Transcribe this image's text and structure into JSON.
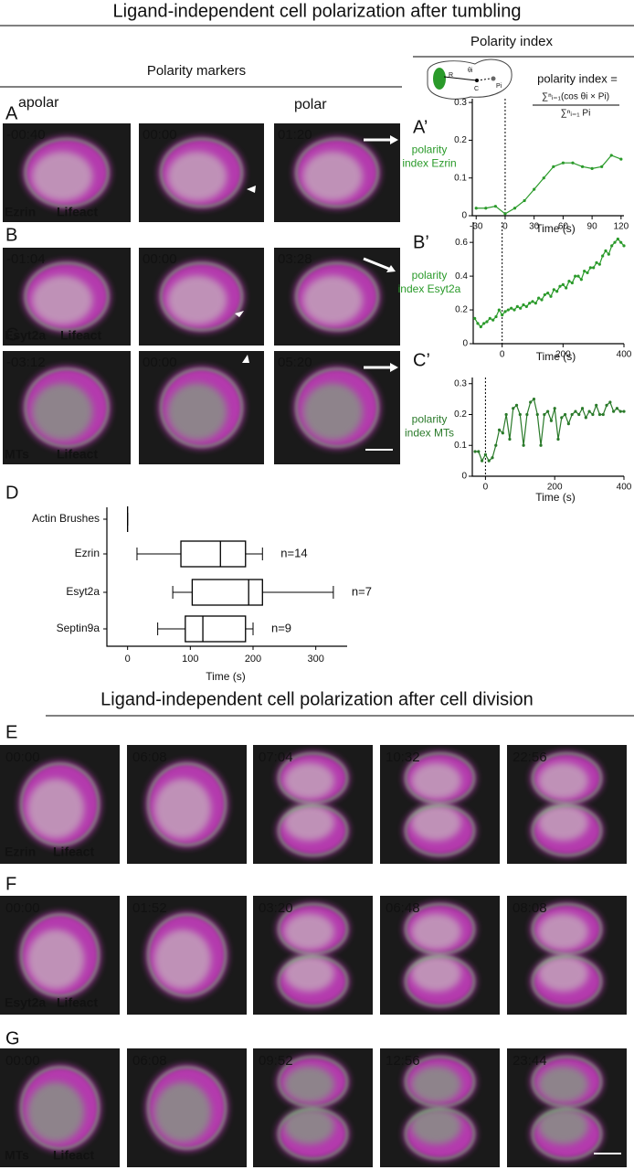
{
  "title": "Ligand-independent cell polarization after tumbling",
  "headers": {
    "polarity_index": "Polarity index",
    "polarity_markers": "Polarity markers",
    "apolar": "apolar",
    "polar": "polar"
  },
  "diagram_labels": [
    "R",
    "θi",
    "C",
    "Pi"
  ],
  "formula": {
    "lhs": "polarity index =",
    "numerator": "∑ⁿᵢ₌₁(cos θi × Pi)",
    "denominator": "∑ⁿᵢ₌₁ Pi"
  },
  "top_panels": [
    {
      "letter": "A",
      "channels": [
        "Ezrin",
        "Lifeact"
      ],
      "times": [
        "-00:40",
        "00:00",
        "01:20"
      ]
    },
    {
      "letter": "B",
      "channels": [
        "Esyt2a",
        "Lifeact"
      ],
      "times": [
        "-01:04",
        "00:00",
        "03:28"
      ]
    },
    {
      "letter": "C",
      "channels": [
        "MTs",
        "Lifeact"
      ],
      "times": [
        "-03:12",
        "00:00",
        "05:20"
      ]
    }
  ],
  "subtitle": "Ligand-independent cell polarization after cell division",
  "bottom_panels": [
    {
      "letter": "E",
      "channels": [
        "Ezrin",
        "Lifeact"
      ],
      "times": [
        "00:00",
        "06:08",
        "07:04",
        "10:32",
        "22:56"
      ]
    },
    {
      "letter": "F",
      "channels": [
        "Esyt2a",
        "Lifeact"
      ],
      "times": [
        "00:00",
        "01:52",
        "03:20",
        "06:48",
        "08:08"
      ]
    },
    {
      "letter": "G",
      "channels": [
        "MTs",
        "Lifeact"
      ],
      "times": [
        "00:00",
        "06:08",
        "09:52",
        "12:56",
        "23:44"
      ]
    }
  ],
  "chart_data": [
    {
      "type": "line",
      "panel": "A’",
      "ylabel": [
        "polarity",
        "index Ezrin"
      ],
      "xlabel": "Time (s)",
      "color": "#2a9a2a",
      "x": [
        -30,
        -20,
        -10,
        0,
        10,
        20,
        30,
        40,
        50,
        60,
        70,
        80,
        90,
        100,
        110,
        120
      ],
      "values": [
        0.02,
        0.02,
        0.025,
        0.005,
        0.02,
        0.04,
        0.07,
        0.1,
        0.13,
        0.14,
        0.14,
        0.13,
        0.125,
        0.13,
        0.16,
        0.15
      ],
      "xlim": [
        -34,
        123
      ],
      "ylim": [
        0,
        0.31
      ],
      "xticks": [
        -30,
        0,
        30,
        60,
        90,
        120
      ],
      "yticks": [
        0,
        0.1,
        0.2,
        0.3
      ],
      "vline": 0
    },
    {
      "type": "line",
      "panel": "B’",
      "ylabel": [
        "polarity",
        "index Esyt2a"
      ],
      "xlabel": "Time (s)",
      "color": "#2a9a2a",
      "x": [
        -90,
        -80,
        -70,
        -60,
        -50,
        -40,
        -30,
        -20,
        -10,
        0,
        10,
        20,
        30,
        40,
        50,
        60,
        70,
        80,
        90,
        100,
        110,
        120,
        130,
        140,
        150,
        160,
        170,
        180,
        190,
        200,
        210,
        220,
        230,
        240,
        250,
        260,
        270,
        280,
        290,
        300,
        310,
        320,
        330,
        340,
        350,
        360,
        370,
        380,
        390,
        400
      ],
      "values": [
        0.15,
        0.12,
        0.1,
        0.12,
        0.13,
        0.15,
        0.14,
        0.16,
        0.2,
        0.17,
        0.19,
        0.2,
        0.21,
        0.2,
        0.22,
        0.21,
        0.23,
        0.22,
        0.24,
        0.25,
        0.24,
        0.27,
        0.26,
        0.29,
        0.3,
        0.28,
        0.32,
        0.31,
        0.34,
        0.35,
        0.33,
        0.37,
        0.36,
        0.4,
        0.4,
        0.38,
        0.43,
        0.42,
        0.45,
        0.45,
        0.48,
        0.47,
        0.52,
        0.55,
        0.53,
        0.58,
        0.6,
        0.62,
        0.6,
        0.58
      ],
      "xlim": [
        -95,
        400
      ],
      "ylim": [
        0,
        0.72
      ],
      "xticks": [
        0,
        200,
        400
      ],
      "yticks": [
        0,
        0.2,
        0.4,
        0.6
      ],
      "vline": 0
    },
    {
      "type": "line",
      "panel": "C’",
      "ylabel": [
        "polarity",
        "index MTs"
      ],
      "xlabel": "Time (s)",
      "color": "#2a7a2a",
      "x": [
        -30,
        -20,
        -10,
        0,
        10,
        20,
        30,
        40,
        50,
        60,
        70,
        80,
        90,
        100,
        110,
        120,
        130,
        140,
        150,
        160,
        170,
        180,
        190,
        200,
        210,
        220,
        230,
        240,
        250,
        260,
        270,
        280,
        290,
        300,
        310,
        320,
        330,
        340,
        350,
        360,
        370,
        380,
        390,
        400
      ],
      "values": [
        0.08,
        0.08,
        0.05,
        0.07,
        0.05,
        0.06,
        0.1,
        0.15,
        0.14,
        0.2,
        0.12,
        0.22,
        0.23,
        0.2,
        0.1,
        0.2,
        0.24,
        0.25,
        0.2,
        0.1,
        0.2,
        0.21,
        0.18,
        0.22,
        0.12,
        0.19,
        0.2,
        0.17,
        0.2,
        0.21,
        0.2,
        0.22,
        0.19,
        0.21,
        0.2,
        0.23,
        0.2,
        0.2,
        0.23,
        0.24,
        0.21,
        0.22,
        0.21,
        0.21
      ],
      "xlim": [
        -38,
        400
      ],
      "ylim": [
        0,
        0.32
      ],
      "xticks": [
        0,
        200,
        400
      ],
      "yticks": [
        0,
        0.1,
        0.2,
        0.3
      ],
      "vline": 0
    },
    {
      "type": "box",
      "panel": "D",
      "xlabel": "Time (s)",
      "categories": [
        "Actin Brushes",
        "Ezrin",
        "Esyt2a",
        "Septin9a"
      ],
      "min": [
        0,
        15,
        72,
        48
      ],
      "q1": [
        0,
        85,
        103,
        92
      ],
      "median": [
        0,
        148,
        193,
        120
      ],
      "q3": [
        0,
        188,
        215,
        188
      ],
      "max": [
        0,
        215,
        328,
        200
      ],
      "n_labels": [
        null,
        "n=14",
        "n=7",
        "n=9"
      ],
      "xlim": [
        -33,
        350
      ],
      "xticks": [
        0,
        100,
        200,
        300
      ]
    }
  ]
}
